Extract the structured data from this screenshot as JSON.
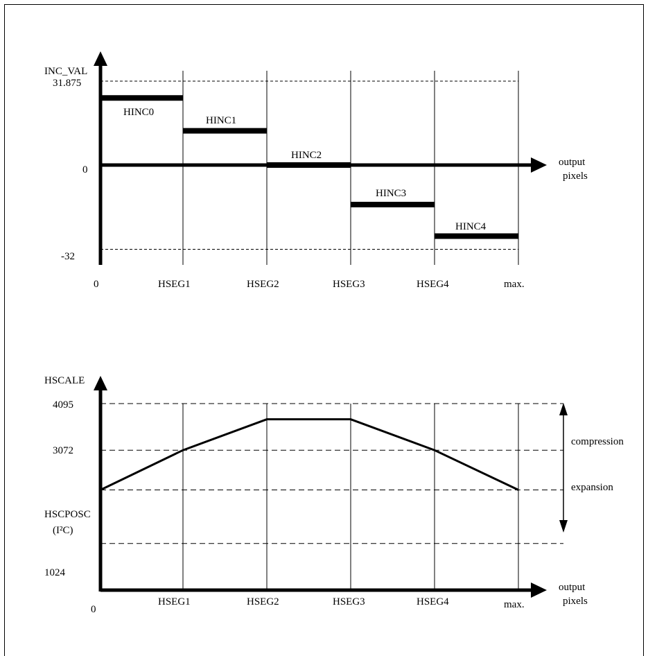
{
  "top": {
    "y_axis_label": "INC_VAL",
    "y_ticks": [
      {
        "label": "31.875",
        "value": 31.875
      },
      {
        "label": "0",
        "value": 0
      },
      {
        "label": "-32",
        "value": -32
      }
    ],
    "x_ticks": [
      "0",
      "HSEG1",
      "HSEG2",
      "HSEG3",
      "HSEG4",
      "max."
    ],
    "x_axis_label_1": "output",
    "x_axis_label_2": "pixels",
    "segments": [
      {
        "label": "HINC0",
        "value": 25.5
      },
      {
        "label": "HINC1",
        "value": 13
      },
      {
        "label": "HINC2",
        "value": 0
      },
      {
        "label": "HINC3",
        "value": -15
      },
      {
        "label": "HINC4",
        "value": -27
      }
    ]
  },
  "bottom": {
    "y_axis_label": "HSCALE",
    "y_ticks": [
      {
        "label": "4095",
        "value": 4095
      },
      {
        "label": "3072",
        "value": 3072
      },
      {
        "label": "HSCPOSC",
        "value": 2200
      },
      {
        "label": "1024",
        "value": 1024
      }
    ],
    "hscposc_sub": "(I²C)",
    "x_ticks": [
      "0",
      "HSEG1",
      "HSEG2",
      "HSEG3",
      "HSEG4",
      "max."
    ],
    "x_axis_label_1": "output",
    "x_axis_label_2": "pixels",
    "curve": [
      2200,
      3072,
      3750,
      3750,
      3072,
      2200
    ],
    "compression_label": "compression",
    "expansion_label": "expansion"
  },
  "colors": {
    "line": "#000000",
    "background": "#ffffff"
  }
}
